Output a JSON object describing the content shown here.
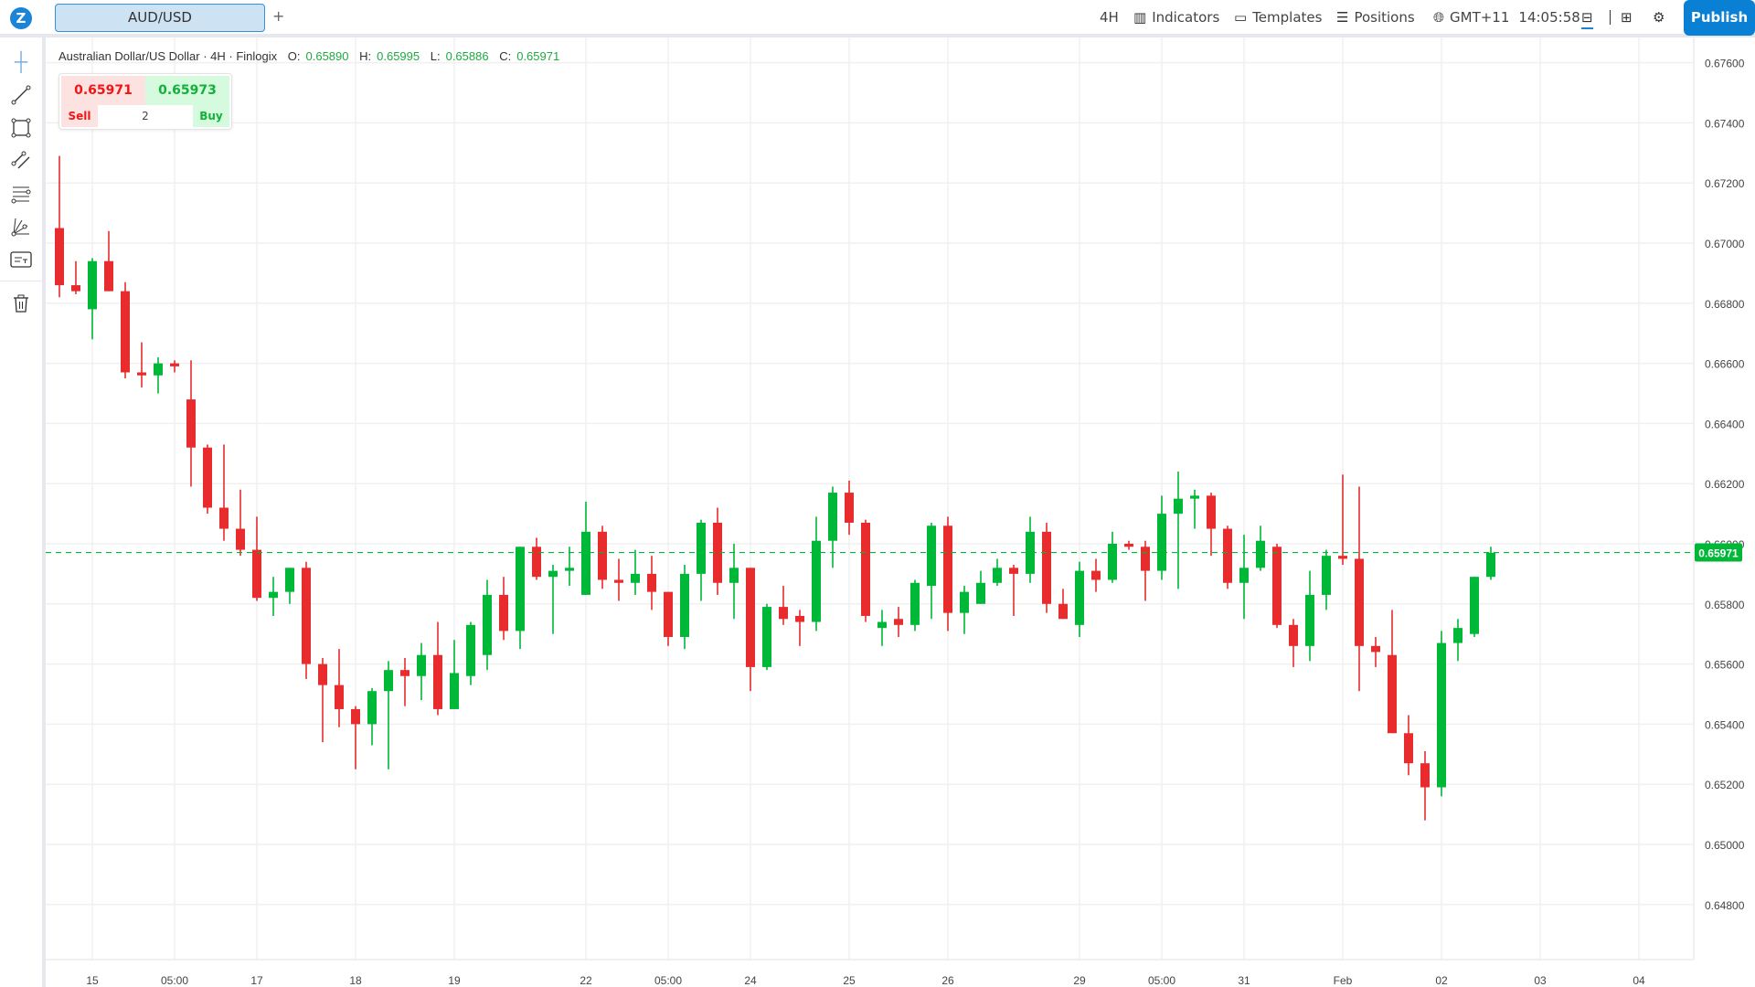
{
  "topbar": {
    "symbol_tab": "AUD/USD",
    "add_tab": "+",
    "interval": "4H",
    "indicators": "Indicators",
    "templates": "Templates",
    "positions": "Positions",
    "timezone": "GMT+11",
    "clock": "14:05:58",
    "publish": "Publish"
  },
  "left_toolbar": [
    "crosshair-icon",
    "trend-line-icon",
    "rectangle-icon",
    "parallel-channel-icon",
    "fib-retracement-icon",
    "gann-fan-icon",
    "text-note-icon",
    "trash-icon"
  ],
  "legend": {
    "title": "Australian Dollar/US Dollar · 4H · Finlogix",
    "o_label": "O:",
    "o": "0.65890",
    "h_label": "H:",
    "h": "0.65995",
    "l_label": "L:",
    "l": "0.65886",
    "c_label": "C:",
    "c": "0.65971"
  },
  "trade_widget": {
    "sell_price": "0.65971",
    "buy_price": "0.65973",
    "sell": "Sell",
    "buy": "Buy",
    "quantity": "2"
  },
  "colors": {
    "up": "#00b837",
    "down": "#e82c2e",
    "accent": "#0a80d4"
  },
  "chart_data": {
    "type": "candlestick",
    "ylim": [
      0.6465,
      0.6775
    ],
    "y_ticks": [
      "0.67600",
      "0.67400",
      "0.67200",
      "0.67000",
      "0.66800",
      "0.66600",
      "0.66400",
      "0.66200",
      "0.66000",
      "0.65800",
      "0.65600",
      "0.65400",
      "0.65200",
      "0.65000",
      "0.64800"
    ],
    "last_price": "0.65971",
    "x_ticks": [
      {
        "i": 2,
        "label": "15"
      },
      {
        "i": 7,
        "label": "05:00"
      },
      {
        "i": 12,
        "label": "17"
      },
      {
        "i": 18,
        "label": "18"
      },
      {
        "i": 24,
        "label": "19"
      },
      {
        "i": 32,
        "label": "22"
      },
      {
        "i": 37,
        "label": "05:00"
      },
      {
        "i": 42,
        "label": "24"
      },
      {
        "i": 48,
        "label": "25"
      },
      {
        "i": 54,
        "label": "26"
      },
      {
        "i": 62,
        "label": "29"
      },
      {
        "i": 67,
        "label": "05:00"
      },
      {
        "i": 72,
        "label": "31"
      },
      {
        "i": 78,
        "label": "Feb"
      },
      {
        "i": 84,
        "label": "02"
      },
      {
        "i": 90,
        "label": "03"
      },
      {
        "i": 96,
        "label": "04"
      }
    ],
    "ohlc": [
      [
        0.6705,
        0.6729,
        0.6682,
        0.6686
      ],
      [
        0.6686,
        0.6694,
        0.6683,
        0.6684
      ],
      [
        0.6678,
        0.6695,
        0.6668,
        0.6694
      ],
      [
        0.6694,
        0.6704,
        0.6684,
        0.6684
      ],
      [
        0.6684,
        0.6687,
        0.6655,
        0.6657
      ],
      [
        0.6657,
        0.6667,
        0.6652,
        0.6656
      ],
      [
        0.6656,
        0.6662,
        0.665,
        0.666
      ],
      [
        0.666,
        0.6661,
        0.6657,
        0.6659
      ],
      [
        0.6648,
        0.6661,
        0.6619,
        0.6632
      ],
      [
        0.6632,
        0.6633,
        0.661,
        0.6612
      ],
      [
        0.6612,
        0.6633,
        0.6601,
        0.6605
      ],
      [
        0.6605,
        0.6618,
        0.6596,
        0.6598
      ],
      [
        0.6598,
        0.6609,
        0.6581,
        0.6582
      ],
      [
        0.6582,
        0.6589,
        0.6576,
        0.6584
      ],
      [
        0.6584,
        0.6592,
        0.658,
        0.6592
      ],
      [
        0.6592,
        0.6594,
        0.6555,
        0.656
      ],
      [
        0.656,
        0.6562,
        0.6534,
        0.6553
      ],
      [
        0.6553,
        0.6565,
        0.6539,
        0.6545
      ],
      [
        0.6545,
        0.6546,
        0.6525,
        0.654
      ],
      [
        0.654,
        0.6552,
        0.6533,
        0.6551
      ],
      [
        0.6551,
        0.6561,
        0.6525,
        0.6558
      ],
      [
        0.6558,
        0.6562,
        0.6546,
        0.6556
      ],
      [
        0.6556,
        0.6567,
        0.6548,
        0.6563
      ],
      [
        0.6563,
        0.6574,
        0.6543,
        0.6545
      ],
      [
        0.6545,
        0.6568,
        0.6545,
        0.6557
      ],
      [
        0.6556,
        0.6574,
        0.6553,
        0.6573
      ],
      [
        0.6563,
        0.6588,
        0.6558,
        0.6583
      ],
      [
        0.6583,
        0.6589,
        0.6568,
        0.6571
      ],
      [
        0.6571,
        0.6599,
        0.6565,
        0.6599
      ],
      [
        0.6599,
        0.6602,
        0.6588,
        0.6589
      ],
      [
        0.6589,
        0.6593,
        0.657,
        0.6591
      ],
      [
        0.6591,
        0.6599,
        0.6586,
        0.6592
      ],
      [
        0.6583,
        0.6614,
        0.6583,
        0.6604
      ],
      [
        0.6604,
        0.6606,
        0.6585,
        0.6588
      ],
      [
        0.6588,
        0.6595,
        0.6581,
        0.6587
      ],
      [
        0.6587,
        0.6598,
        0.6583,
        0.659
      ],
      [
        0.659,
        0.6596,
        0.6578,
        0.6584
      ],
      [
        0.6584,
        0.6584,
        0.6566,
        0.6569
      ],
      [
        0.6569,
        0.6593,
        0.6565,
        0.659
      ],
      [
        0.659,
        0.6608,
        0.6581,
        0.6607
      ],
      [
        0.6607,
        0.6612,
        0.6583,
        0.6587
      ],
      [
        0.6587,
        0.66,
        0.6575,
        0.6592
      ],
      [
        0.6592,
        0.6592,
        0.6551,
        0.6559
      ],
      [
        0.6559,
        0.658,
        0.6558,
        0.6579
      ],
      [
        0.6579,
        0.6586,
        0.6573,
        0.6575
      ],
      [
        0.6576,
        0.6578,
        0.6566,
        0.6574
      ],
      [
        0.6574,
        0.6609,
        0.6571,
        0.6601
      ],
      [
        0.6601,
        0.6619,
        0.6592,
        0.6617
      ],
      [
        0.6617,
        0.6621,
        0.6603,
        0.6607
      ],
      [
        0.6607,
        0.6608,
        0.6574,
        0.6576
      ],
      [
        0.6572,
        0.6578,
        0.6566,
        0.6574
      ],
      [
        0.6575,
        0.6579,
        0.6569,
        0.6573
      ],
      [
        0.6573,
        0.6588,
        0.6571,
        0.6587
      ],
      [
        0.6586,
        0.6607,
        0.6575,
        0.6606
      ],
      [
        0.6606,
        0.6609,
        0.6571,
        0.6577
      ],
      [
        0.6577,
        0.6586,
        0.657,
        0.6584
      ],
      [
        0.658,
        0.6591,
        0.658,
        0.6587
      ],
      [
        0.6587,
        0.6595,
        0.6586,
        0.6592
      ],
      [
        0.6592,
        0.6593,
        0.6576,
        0.659
      ],
      [
        0.659,
        0.6609,
        0.6587,
        0.6604
      ],
      [
        0.6604,
        0.6607,
        0.6577,
        0.658
      ],
      [
        0.658,
        0.6585,
        0.6575,
        0.6575
      ],
      [
        0.6573,
        0.6594,
        0.6569,
        0.6591
      ],
      [
        0.6591,
        0.6595,
        0.6584,
        0.6588
      ],
      [
        0.6588,
        0.6604,
        0.6587,
        0.66
      ],
      [
        0.66,
        0.6601,
        0.6598,
        0.6599
      ],
      [
        0.6599,
        0.6601,
        0.6581,
        0.6591
      ],
      [
        0.6591,
        0.6616,
        0.6588,
        0.661
      ],
      [
        0.661,
        0.6624,
        0.6585,
        0.6615
      ],
      [
        0.6615,
        0.6618,
        0.6605,
        0.6616
      ],
      [
        0.6616,
        0.6617,
        0.6596,
        0.6605
      ],
      [
        0.6605,
        0.6606,
        0.6585,
        0.6587
      ],
      [
        0.6587,
        0.6603,
        0.6575,
        0.6592
      ],
      [
        0.6592,
        0.6606,
        0.6591,
        0.6601
      ],
      [
        0.6599,
        0.66,
        0.6572,
        0.6573
      ],
      [
        0.6573,
        0.6575,
        0.6559,
        0.6566
      ],
      [
        0.6566,
        0.6591,
        0.6561,
        0.6583
      ],
      [
        0.6583,
        0.6598,
        0.6578,
        0.6596
      ],
      [
        0.6596,
        0.6623,
        0.6593,
        0.6595
      ],
      [
        0.6595,
        0.6619,
        0.6551,
        0.6566
      ],
      [
        0.6566,
        0.6569,
        0.6559,
        0.6564
      ],
      [
        0.6563,
        0.6578,
        0.6537,
        0.6537
      ],
      [
        0.6537,
        0.6543,
        0.6523,
        0.6527
      ],
      [
        0.6527,
        0.6531,
        0.6508,
        0.6519
      ],
      [
        0.6519,
        0.6571,
        0.6516,
        0.6567
      ],
      [
        0.6567,
        0.6575,
        0.6561,
        0.6572
      ],
      [
        0.657,
        0.6589,
        0.6569,
        0.6589
      ],
      [
        0.6589,
        0.6599,
        0.6588,
        0.6597
      ]
    ]
  }
}
